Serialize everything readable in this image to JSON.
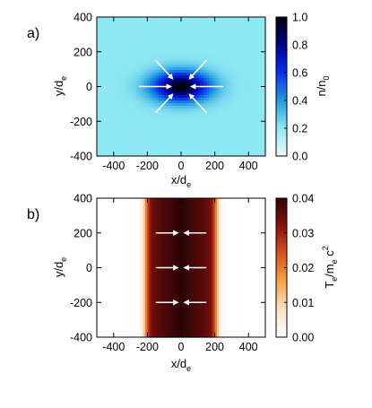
{
  "chart_data": [
    {
      "type": "heatmap",
      "panel_label": "a)",
      "xlabel": "x/d",
      "xlabel_sub": "e",
      "ylabel": "y/d",
      "ylabel_sub": "e",
      "xlim": [
        -500,
        500
      ],
      "ylim": [
        -400,
        400
      ],
      "xticks": [
        -400,
        -200,
        0,
        200,
        400
      ],
      "yticks": [
        -400,
        -200,
        0,
        200,
        400
      ],
      "colorbar": {
        "label": "n/n",
        "label_sub": "0",
        "range": [
          0.0,
          1.0
        ],
        "ticks": [
          "0.0",
          "0.2",
          "0.4",
          "0.6",
          "0.8",
          "1.0"
        ],
        "colormap": [
          "#eefbff",
          "#8fe9f2",
          "#1f9be0",
          "#0a2ff0",
          "#000090",
          "#000000"
        ]
      },
      "field": {
        "shape": "elliptical gaussian peak",
        "center": [
          0,
          0
        ],
        "background_value": 0.2,
        "peak_value": 1.0,
        "sigma_x": 120,
        "sigma_y": 60
      },
      "arrows": [
        {
          "from": [
            -250,
            0
          ],
          "to": [
            -60,
            0
          ]
        },
        {
          "from": [
            250,
            0
          ],
          "to": [
            60,
            0
          ]
        },
        {
          "from": [
            -150,
            150
          ],
          "to": [
            -50,
            45
          ]
        },
        {
          "from": [
            150,
            150
          ],
          "to": [
            50,
            45
          ]
        },
        {
          "from": [
            -150,
            -150
          ],
          "to": [
            -50,
            -45
          ]
        },
        {
          "from": [
            150,
            -150
          ],
          "to": [
            50,
            -45
          ]
        }
      ]
    },
    {
      "type": "heatmap",
      "panel_label": "b)",
      "xlabel": "x/d",
      "xlabel_sub": "e",
      "ylabel": "y/d",
      "ylabel_sub": "e",
      "xlim": [
        -500,
        500
      ],
      "ylim": [
        -400,
        400
      ],
      "xticks": [
        -400,
        -200,
        0,
        200,
        400
      ],
      "yticks": [
        -400,
        -200,
        0,
        200,
        400
      ],
      "colorbar": {
        "label": "T",
        "label_sub": "e",
        "label_rest": "/m",
        "label_sub2": "e",
        "label_tail": " c",
        "label_sup": "2",
        "range": [
          0.0,
          0.04
        ],
        "ticks": [
          "0.00",
          "0.01",
          "0.02",
          "0.03",
          "0.04"
        ],
        "colormap": [
          "#ffffff",
          "#fde3c4",
          "#f5a347",
          "#d9531e",
          "#8a1010",
          "#2c0505"
        ]
      },
      "field": {
        "shape": "vertical band (function of x only)",
        "center_x": 0,
        "peak_value": 0.04,
        "half_width": 210,
        "edge_width": 50
      },
      "arrows": [
        {
          "from": [
            -150,
            200
          ],
          "to": [
            -20,
            200
          ]
        },
        {
          "from": [
            150,
            200
          ],
          "to": [
            20,
            200
          ]
        },
        {
          "from": [
            -150,
            0
          ],
          "to": [
            -20,
            0
          ]
        },
        {
          "from": [
            150,
            0
          ],
          "to": [
            20,
            0
          ]
        },
        {
          "from": [
            -150,
            -200
          ],
          "to": [
            -20,
            -200
          ]
        },
        {
          "from": [
            150,
            -200
          ],
          "to": [
            20,
            -200
          ]
        }
      ]
    }
  ]
}
